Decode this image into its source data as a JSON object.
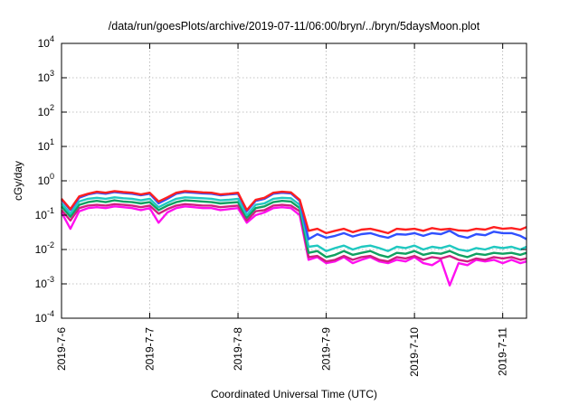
{
  "chart_data": {
    "type": "line",
    "title": "/data/run/goesPlots/archive/2019-07-11/06:00/bryn/../bryn/5daysMoon.plot",
    "xlabel": "Coordinated Universal Time (UTC)",
    "ylabel": "cGy/day",
    "yscale": "log",
    "ylim": [
      0.0001,
      10000
    ],
    "xlim": [
      0,
      5.27
    ],
    "grid": true,
    "x_tick_values": [
      0,
      1,
      2,
      3,
      4,
      5
    ],
    "x_tick_labels": [
      "2019-7-6",
      "2019-7-7",
      "2019-7-8",
      "2019-7-9",
      "2019-7-10",
      "2019-7-11"
    ],
    "y_tick_exponents": [
      -4,
      -3,
      -2,
      -1,
      0,
      1,
      2,
      3,
      4
    ],
    "y_tick_base": "10",
    "x": [
      0,
      0.1,
      0.2,
      0.3,
      0.4,
      0.5,
      0.6,
      0.7,
      0.8,
      0.9,
      1.0,
      1.1,
      1.2,
      1.3,
      1.4,
      1.5,
      1.6,
      1.7,
      1.8,
      1.9,
      2.0,
      2.1,
      2.2,
      2.3,
      2.4,
      2.5,
      2.6,
      2.7,
      2.8,
      2.9,
      3.0,
      3.1,
      3.2,
      3.3,
      3.4,
      3.5,
      3.6,
      3.7,
      3.8,
      3.9,
      4.0,
      4.1,
      4.2,
      4.3,
      4.4,
      4.5,
      4.6,
      4.7,
      4.8,
      4.9,
      5.0,
      5.1,
      5.2,
      5.27
    ],
    "series": [
      {
        "color": "#ff2020",
        "values": [
          0.3,
          0.15,
          0.35,
          0.42,
          0.48,
          0.45,
          0.5,
          0.47,
          0.45,
          0.4,
          0.45,
          0.25,
          0.33,
          0.45,
          0.5,
          0.48,
          0.46,
          0.45,
          0.4,
          0.42,
          0.45,
          0.14,
          0.28,
          0.32,
          0.45,
          0.48,
          0.46,
          0.28,
          0.035,
          0.04,
          0.03,
          0.035,
          0.04,
          0.032,
          0.038,
          0.04,
          0.035,
          0.03,
          0.04,
          0.038,
          0.04,
          0.035,
          0.042,
          0.038,
          0.04,
          0.036,
          0.035,
          0.04,
          0.038,
          0.045,
          0.04,
          0.042,
          0.038,
          0.045
        ]
      },
      {
        "color": "#3050ff",
        "values": [
          0.28,
          0.14,
          0.32,
          0.4,
          0.45,
          0.42,
          0.47,
          0.44,
          0.42,
          0.38,
          0.42,
          0.22,
          0.3,
          0.42,
          0.47,
          0.45,
          0.43,
          0.42,
          0.38,
          0.4,
          0.42,
          0.13,
          0.26,
          0.3,
          0.42,
          0.45,
          0.43,
          0.26,
          0.02,
          0.028,
          0.022,
          0.025,
          0.03,
          0.024,
          0.028,
          0.03,
          0.025,
          0.022,
          0.028,
          0.027,
          0.03,
          0.025,
          0.03,
          0.028,
          0.035,
          0.025,
          0.022,
          0.028,
          0.026,
          0.033,
          0.03,
          0.03,
          0.025,
          0.02
        ]
      },
      {
        "color": "#20c8c0",
        "values": [
          0.22,
          0.11,
          0.25,
          0.3,
          0.32,
          0.3,
          0.33,
          0.31,
          0.3,
          0.27,
          0.3,
          0.17,
          0.23,
          0.3,
          0.33,
          0.32,
          0.31,
          0.3,
          0.27,
          0.28,
          0.3,
          0.1,
          0.2,
          0.22,
          0.3,
          0.32,
          0.31,
          0.2,
          0.012,
          0.013,
          0.009,
          0.011,
          0.013,
          0.01,
          0.012,
          0.013,
          0.011,
          0.009,
          0.012,
          0.011,
          0.013,
          0.01,
          0.012,
          0.011,
          0.013,
          0.01,
          0.009,
          0.011,
          0.01,
          0.012,
          0.011,
          0.012,
          0.01,
          0.012
        ]
      },
      {
        "color": "#10a060",
        "values": [
          0.18,
          0.09,
          0.2,
          0.24,
          0.26,
          0.24,
          0.27,
          0.25,
          0.24,
          0.22,
          0.24,
          0.14,
          0.19,
          0.24,
          0.27,
          0.26,
          0.25,
          0.24,
          0.22,
          0.23,
          0.24,
          0.085,
          0.16,
          0.18,
          0.24,
          0.26,
          0.25,
          0.16,
          0.008,
          0.009,
          0.006,
          0.007,
          0.009,
          0.007,
          0.008,
          0.009,
          0.007,
          0.006,
          0.008,
          0.0075,
          0.009,
          0.007,
          0.008,
          0.0075,
          0.009,
          0.007,
          0.006,
          0.0075,
          0.007,
          0.008,
          0.0075,
          0.008,
          0.007,
          0.008
        ]
      },
      {
        "color": "#d02080",
        "values": [
          0.14,
          0.07,
          0.16,
          0.19,
          0.2,
          0.19,
          0.21,
          0.2,
          0.19,
          0.17,
          0.19,
          0.11,
          0.15,
          0.19,
          0.21,
          0.2,
          0.19,
          0.19,
          0.17,
          0.18,
          0.19,
          0.07,
          0.13,
          0.14,
          0.19,
          0.2,
          0.19,
          0.13,
          0.006,
          0.0065,
          0.0045,
          0.005,
          0.0065,
          0.005,
          0.006,
          0.0065,
          0.005,
          0.0045,
          0.006,
          0.0055,
          0.0065,
          0.005,
          0.006,
          0.0055,
          0.0065,
          0.005,
          0.0045,
          0.0055,
          0.005,
          0.006,
          0.0055,
          0.006,
          0.005,
          0.0055
        ]
      },
      {
        "color": "#ff10f0",
        "values": [
          0.12,
          0.04,
          0.13,
          0.16,
          0.17,
          0.16,
          0.18,
          0.17,
          0.16,
          0.14,
          0.16,
          0.06,
          0.12,
          0.16,
          0.18,
          0.17,
          0.16,
          0.16,
          0.14,
          0.15,
          0.16,
          0.06,
          0.1,
          0.12,
          0.16,
          0.17,
          0.16,
          0.1,
          0.005,
          0.006,
          0.004,
          0.0045,
          0.006,
          0.004,
          0.005,
          0.006,
          0.0045,
          0.004,
          0.005,
          0.0045,
          0.006,
          0.004,
          0.0035,
          0.005,
          0.0009,
          0.004,
          0.0035,
          0.005,
          0.0045,
          0.005,
          0.004,
          0.005,
          0.004,
          0.0045
        ]
      }
    ]
  }
}
